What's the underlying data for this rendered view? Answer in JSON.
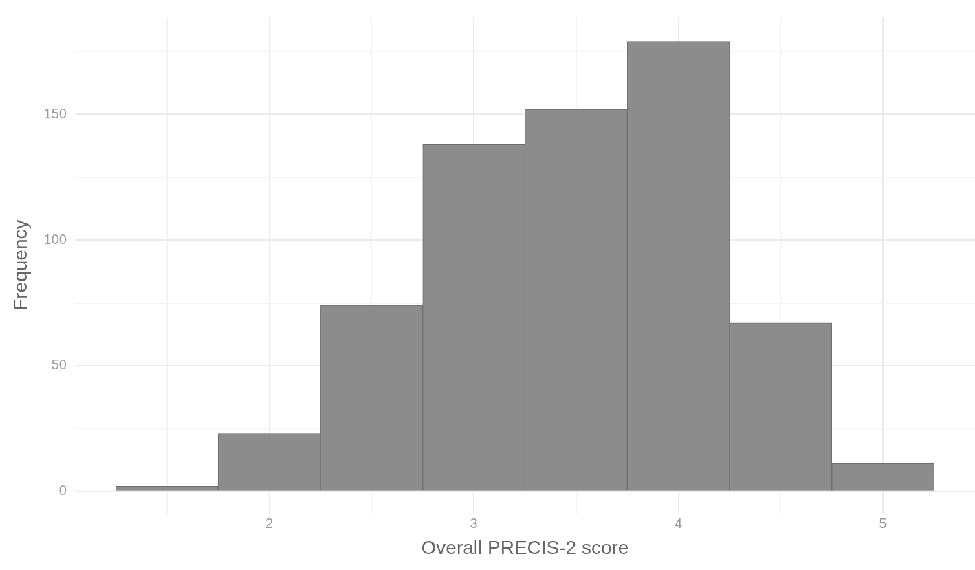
{
  "chart_data": {
    "type": "histogram",
    "xlabel": "Overall PRECIS-2 score",
    "ylabel": "Frequency",
    "bins": [
      1.25,
      1.75,
      2.25,
      2.75,
      3.25,
      3.75,
      4.25,
      4.75,
      5.25
    ],
    "values": [
      2,
      23,
      74,
      138,
      152,
      179,
      67,
      11
    ],
    "color": "#8c8c8c",
    "xlim": [
      1.05,
      5.45
    ],
    "xticks": [
      {
        "value": 1.5,
        "label": null
      },
      2,
      {
        "value": 2.5,
        "label": null
      },
      3,
      {
        "value": 3.5,
        "label": null
      },
      4,
      {
        "value": 4.5,
        "label": null
      },
      5
    ],
    "ylim": [
      -9,
      189
    ],
    "yticks": [
      0,
      {
        "value": 25,
        "label": null
      },
      50,
      {
        "value": 75,
        "label": null
      },
      100,
      {
        "value": 125,
        "label": null
      },
      150,
      {
        "value": 175,
        "label": null
      }
    ],
    "grid": true,
    "legend": false
  }
}
